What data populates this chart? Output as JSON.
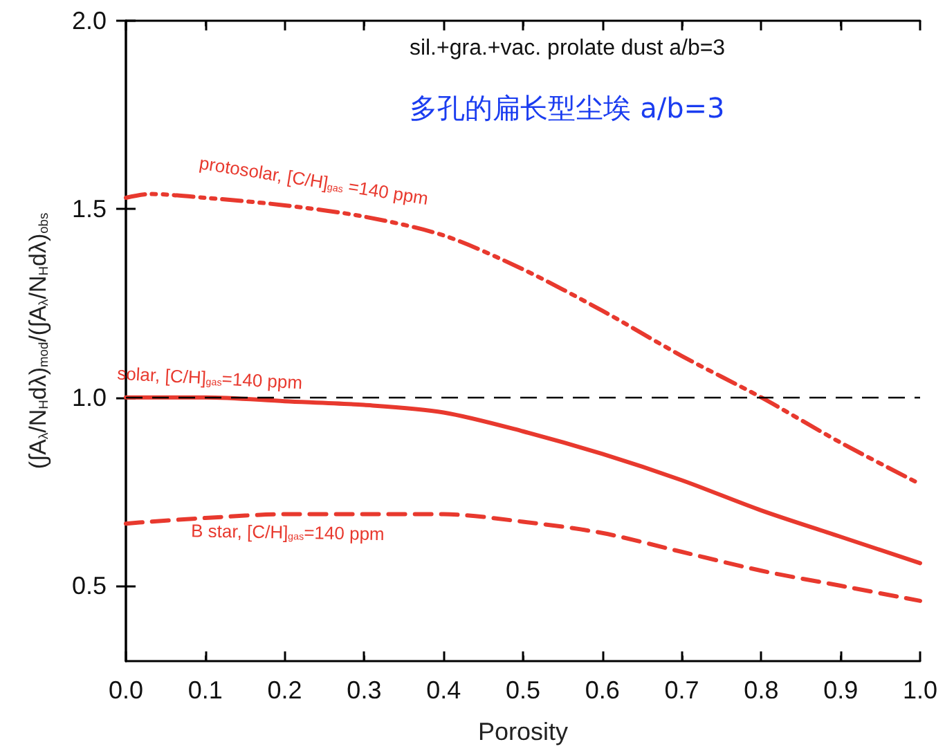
{
  "chart_data": {
    "type": "line",
    "title": "sil.+gra.+vac. prolate dust a/b=3",
    "subtitle": "多孔的扁长型尘埃 a/b=3",
    "xlabel": "Porosity",
    "ylabel": "(∫A$_{λ}$/N$_{H}$dλ)$_{mod}$/(∫A$_{λ}$/N$_{H}$dλ)$_{obs}$",
    "x": [
      0,
      0.03,
      0.1,
      0.2,
      0.3,
      0.4,
      0.5,
      0.6,
      0.7,
      0.8,
      0.9,
      1.0
    ],
    "series": [
      {
        "name": "protosolar, [C/H]$_{gas}$ =140 ppm",
        "color": "#e8392e",
        "line_style": "dashdot",
        "values": [
          1.53,
          1.54,
          1.53,
          1.51,
          1.48,
          1.43,
          1.34,
          1.23,
          1.11,
          1.0,
          0.88,
          0.77
        ]
      },
      {
        "name": "solar, [C/H]$_{gas}$=140 ppm",
        "color": "#e8392e",
        "line_style": "solid",
        "values": [
          1.0,
          1.0,
          1.0,
          0.99,
          0.98,
          0.96,
          0.91,
          0.85,
          0.78,
          0.7,
          0.63,
          0.56
        ]
      },
      {
        "name": "B star, [C/H]$_{gas}$=140 ppm",
        "color": "#e8392e",
        "line_style": "dashed",
        "values": [
          0.665,
          0.67,
          0.68,
          0.69,
          0.69,
          0.69,
          0.67,
          0.64,
          0.59,
          0.54,
          0.5,
          0.46
        ]
      }
    ],
    "ref_lines": [
      {
        "axis": "y",
        "value": 1.0,
        "color": "#000000",
        "line_style": "dashed"
      }
    ],
    "xlim": [
      0,
      1
    ],
    "xticks": [
      {
        "value": 0,
        "label": "0.0"
      },
      0.1,
      0.2,
      0.3,
      0.4,
      0.5,
      0.6,
      0.7,
      0.8,
      0.9,
      {
        "value": 1,
        "label": "1.0"
      }
    ],
    "ylim": [
      0.3,
      2.0
    ],
    "yticks": [
      0.5,
      {
        "value": 1,
        "label": "1.0"
      },
      1.5,
      {
        "value": 2,
        "label": "2.0"
      }
    ],
    "grid": false,
    "legend": false,
    "marker": "none"
  }
}
